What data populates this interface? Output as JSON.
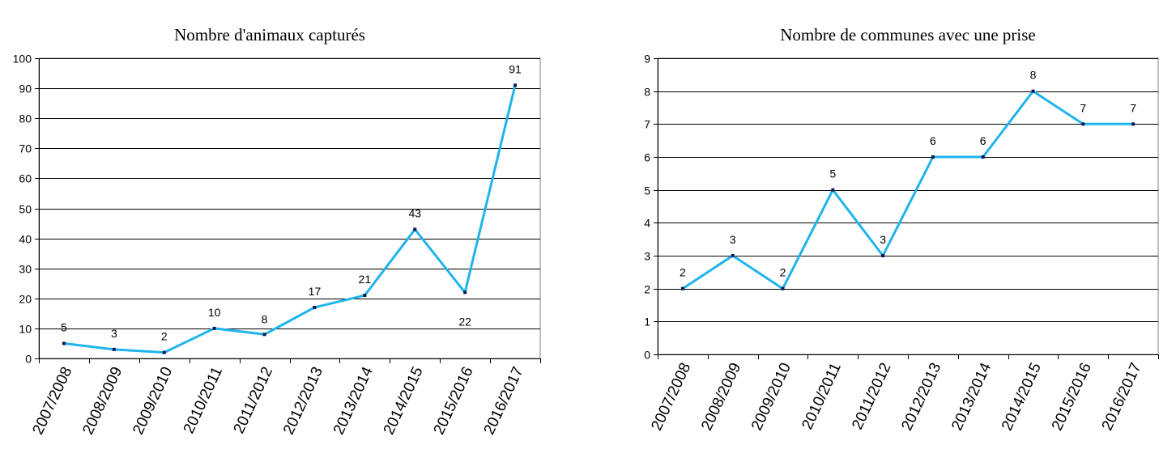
{
  "chart_data": [
    {
      "type": "line",
      "title": "Nombre d'animaux capturés",
      "xlabel": "",
      "ylabel": "",
      "categories": [
        "2007/2008",
        "2008/2009",
        "2009/2010",
        "2010/2011",
        "2011/2012",
        "2012/2013",
        "2013/2014",
        "2014/2015",
        "2015/2016",
        "2016/2017"
      ],
      "series": [
        {
          "values": [
            5,
            3,
            2,
            10,
            8,
            17,
            21,
            43,
            22,
            91
          ],
          "color": "#1fb4ec"
        }
      ],
      "ylim": [
        0,
        100
      ],
      "yticks": [
        0,
        10,
        20,
        30,
        40,
        50,
        60,
        70,
        80,
        90,
        100
      ],
      "grid": "horizontal",
      "legend": "none"
    },
    {
      "type": "line",
      "title": "Nombre de communes avec une prise",
      "xlabel": "",
      "ylabel": "",
      "categories": [
        "2007/2008",
        "2008/2009",
        "2009/2010",
        "2010/2011",
        "2011/2012",
        "2012/2013",
        "2013/2014",
        "2014/2015",
        "2015/2016",
        "2016/2017"
      ],
      "series": [
        {
          "values": [
            2,
            3,
            2,
            5,
            3,
            6,
            6,
            8,
            7,
            7
          ],
          "color": "#1fb4ec"
        }
      ],
      "ylim": [
        0,
        9
      ],
      "yticks": [
        0,
        1,
        2,
        3,
        4,
        5,
        6,
        7,
        8,
        9
      ],
      "grid": "horizontal",
      "legend": "none"
    }
  ]
}
